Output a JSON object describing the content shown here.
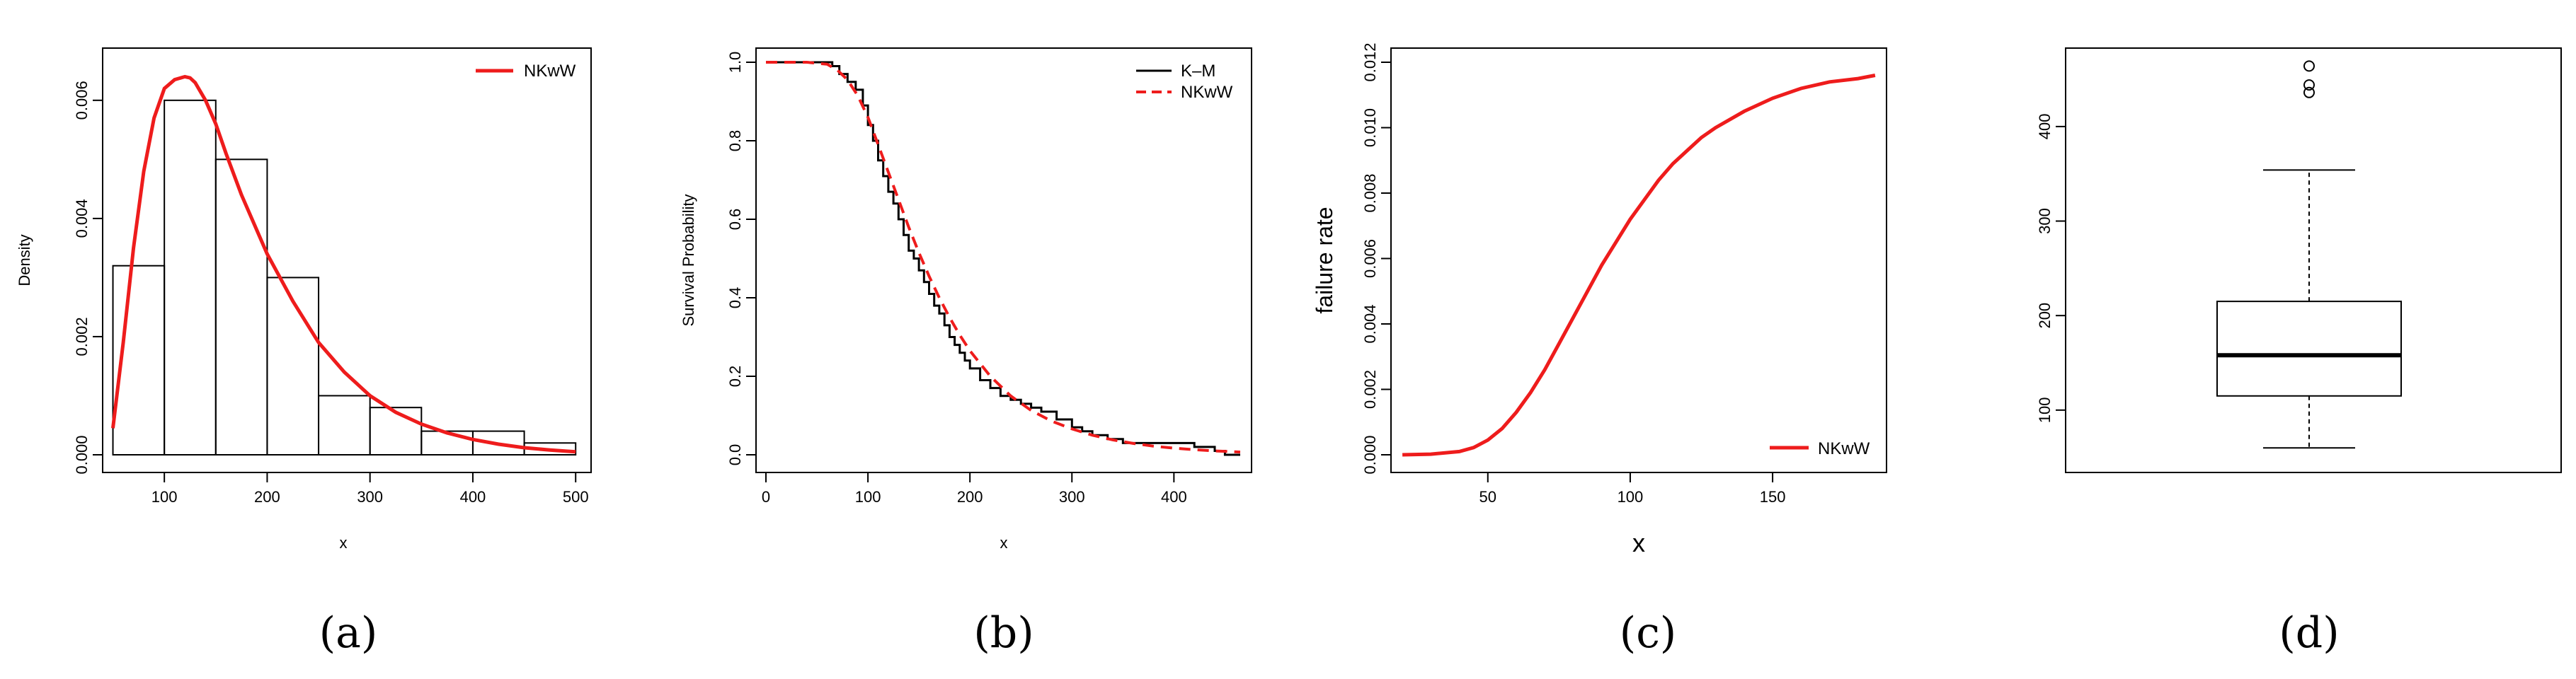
{
  "chart_data": [
    {
      "panel": "(a)",
      "type": "histogram",
      "xlabel": "x",
      "ylabel": "Density",
      "xlim": [
        50,
        500
      ],
      "ylim": [
        0,
        0.0066
      ],
      "x_ticks": [
        100,
        200,
        300,
        400,
        500
      ],
      "y_ticks": [
        "0.000",
        "0.002",
        "0.004",
        "0.006"
      ],
      "bins": [
        {
          "from": 50,
          "to": 100,
          "density": 0.0032
        },
        {
          "from": 100,
          "to": 150,
          "density": 0.006
        },
        {
          "from": 150,
          "to": 200,
          "density": 0.005
        },
        {
          "from": 200,
          "to": 250,
          "density": 0.003
        },
        {
          "from": 250,
          "to": 300,
          "density": 0.001
        },
        {
          "from": 300,
          "to": 350,
          "density": 0.0008
        },
        {
          "from": 350,
          "to": 400,
          "density": 0.0004
        },
        {
          "from": 400,
          "to": 450,
          "density": 0.0004
        },
        {
          "from": 450,
          "to": 500,
          "density": 0.0002
        }
      ],
      "series": [
        {
          "name": "NKwW",
          "color": "#ee1c1c",
          "x": [
            50,
            60,
            70,
            80,
            90,
            100,
            110,
            120,
            125,
            130,
            140,
            150,
            160,
            175,
            200,
            225,
            250,
            275,
            300,
            325,
            350,
            375,
            400,
            425,
            450,
            475,
            500
          ],
          "y": [
            0.00045,
            0.0019,
            0.0035,
            0.0048,
            0.0057,
            0.0062,
            0.00635,
            0.0064,
            0.00638,
            0.0063,
            0.006,
            0.0056,
            0.0051,
            0.0044,
            0.0034,
            0.0026,
            0.0019,
            0.0014,
            0.001,
            0.00072,
            0.00052,
            0.00037,
            0.00026,
            0.00018,
            0.00012,
            8e-05,
            5e-05
          ]
        }
      ],
      "legend": "top-right"
    },
    {
      "panel": "(b)",
      "type": "line",
      "xlabel": "x",
      "ylabel": "Survival Probability",
      "xlim": [
        0,
        465
      ],
      "ylim": [
        0,
        1
      ],
      "x_ticks": [
        0,
        100,
        200,
        300,
        400
      ],
      "y_ticks": [
        "0.0",
        "0.2",
        "0.4",
        "0.6",
        "0.8",
        "1.0"
      ],
      "series": [
        {
          "name": "K–M",
          "style": "step",
          "color": "#000000",
          "x": [
            0,
            55,
            65,
            72,
            80,
            88,
            95,
            100,
            105,
            110,
            115,
            120,
            125,
            130,
            135,
            140,
            145,
            150,
            155,
            160,
            165,
            170,
            175,
            180,
            185,
            190,
            195,
            200,
            210,
            220,
            230,
            240,
            250,
            260,
            270,
            285,
            300,
            310,
            320,
            335,
            350,
            360,
            380,
            400,
            420,
            440,
            450,
            465
          ],
          "y": [
            1.0,
            1.0,
            0.99,
            0.97,
            0.95,
            0.93,
            0.89,
            0.84,
            0.8,
            0.75,
            0.71,
            0.67,
            0.64,
            0.6,
            0.56,
            0.52,
            0.5,
            0.47,
            0.44,
            0.41,
            0.38,
            0.36,
            0.33,
            0.3,
            0.28,
            0.26,
            0.24,
            0.22,
            0.19,
            0.17,
            0.15,
            0.14,
            0.13,
            0.12,
            0.11,
            0.09,
            0.07,
            0.06,
            0.05,
            0.04,
            0.03,
            0.03,
            0.03,
            0.03,
            0.02,
            0.01,
            0.0,
            0.0
          ]
        },
        {
          "name": "NKwW",
          "style": "dashed",
          "color": "#ee1c1c",
          "x": [
            0,
            40,
            60,
            70,
            80,
            90,
            100,
            110,
            120,
            130,
            140,
            150,
            160,
            170,
            180,
            190,
            200,
            220,
            240,
            260,
            280,
            300,
            320,
            340,
            360,
            380,
            400,
            420,
            440,
            465
          ],
          "y": [
            1.0,
            1.0,
            0.995,
            0.98,
            0.955,
            0.915,
            0.86,
            0.79,
            0.72,
            0.65,
            0.58,
            0.515,
            0.455,
            0.4,
            0.35,
            0.305,
            0.265,
            0.2,
            0.15,
            0.113,
            0.086,
            0.066,
            0.05,
            0.038,
            0.029,
            0.022,
            0.017,
            0.013,
            0.01,
            0.007
          ]
        }
      ],
      "legend": "top-right"
    },
    {
      "panel": "(c)",
      "type": "line",
      "xlabel": "x",
      "ylabel": "failure rate",
      "xlim": [
        16,
        190
      ],
      "ylim": [
        0,
        0.012
      ],
      "x_ticks": [
        50,
        100,
        150
      ],
      "y_ticks": [
        "0.000",
        "0.002",
        "0.004",
        "0.006",
        "0.008",
        "0.010",
        "0.012"
      ],
      "series": [
        {
          "name": "NKwW",
          "color": "#ee1c1c",
          "x": [
            20,
            30,
            40,
            45,
            50,
            55,
            60,
            65,
            70,
            75,
            80,
            85,
            90,
            95,
            100,
            105,
            110,
            115,
            120,
            125,
            130,
            140,
            150,
            160,
            170,
            180,
            186
          ],
          "y": [
            0.0,
            2e-05,
            0.0001,
            0.00022,
            0.00045,
            0.0008,
            0.0013,
            0.0019,
            0.0026,
            0.0034,
            0.0042,
            0.005,
            0.0058,
            0.0065,
            0.0072,
            0.0078,
            0.0084,
            0.0089,
            0.0093,
            0.0097,
            0.01,
            0.0105,
            0.0109,
            0.0112,
            0.0114,
            0.0115,
            0.0116
          ]
        }
      ],
      "legend": "bottom-right"
    },
    {
      "panel": "(d)",
      "type": "boxplot",
      "ylim": [
        40,
        480
      ],
      "y_ticks": [
        100,
        200,
        300,
        400
      ],
      "box": {
        "min": 60,
        "q1": 115,
        "median": 158,
        "q3": 215,
        "max": 354
      },
      "outliers": [
        436,
        444,
        464
      ]
    }
  ],
  "captions": [
    "(a)",
    "(b)",
    "(c)",
    "(d)"
  ],
  "legend_labels": {
    "nkww": "NKwW",
    "km": "K–M"
  },
  "colors": {
    "model": "#ee1c1c",
    "km": "#000000",
    "axis": "#000000"
  }
}
